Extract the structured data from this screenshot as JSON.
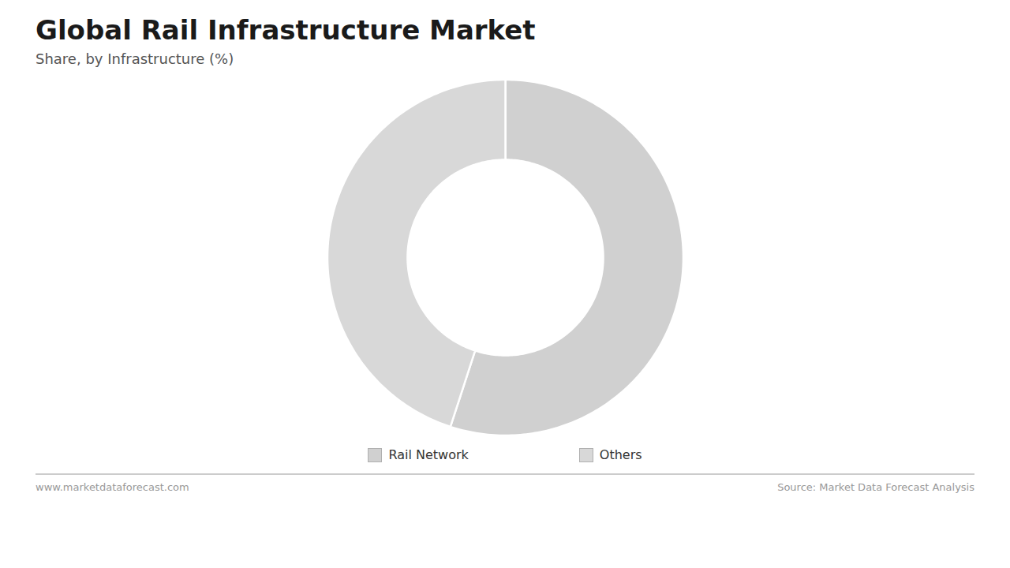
{
  "chart_data": {
    "type": "pie",
    "title": "Global Rail Infrastructure Market",
    "subtitle": "Share, by Infrastructure (%)",
    "categories": [
      "Rail Network",
      "Others"
    ],
    "values": [
      55,
      45
    ],
    "colors": [
      "#d0d0d0",
      "#d8d8d8"
    ],
    "legend": "bottom",
    "annotations": [
      "www.marketdataforecast.com",
      "Source: Market Data Forecast Analysis"
    ]
  }
}
